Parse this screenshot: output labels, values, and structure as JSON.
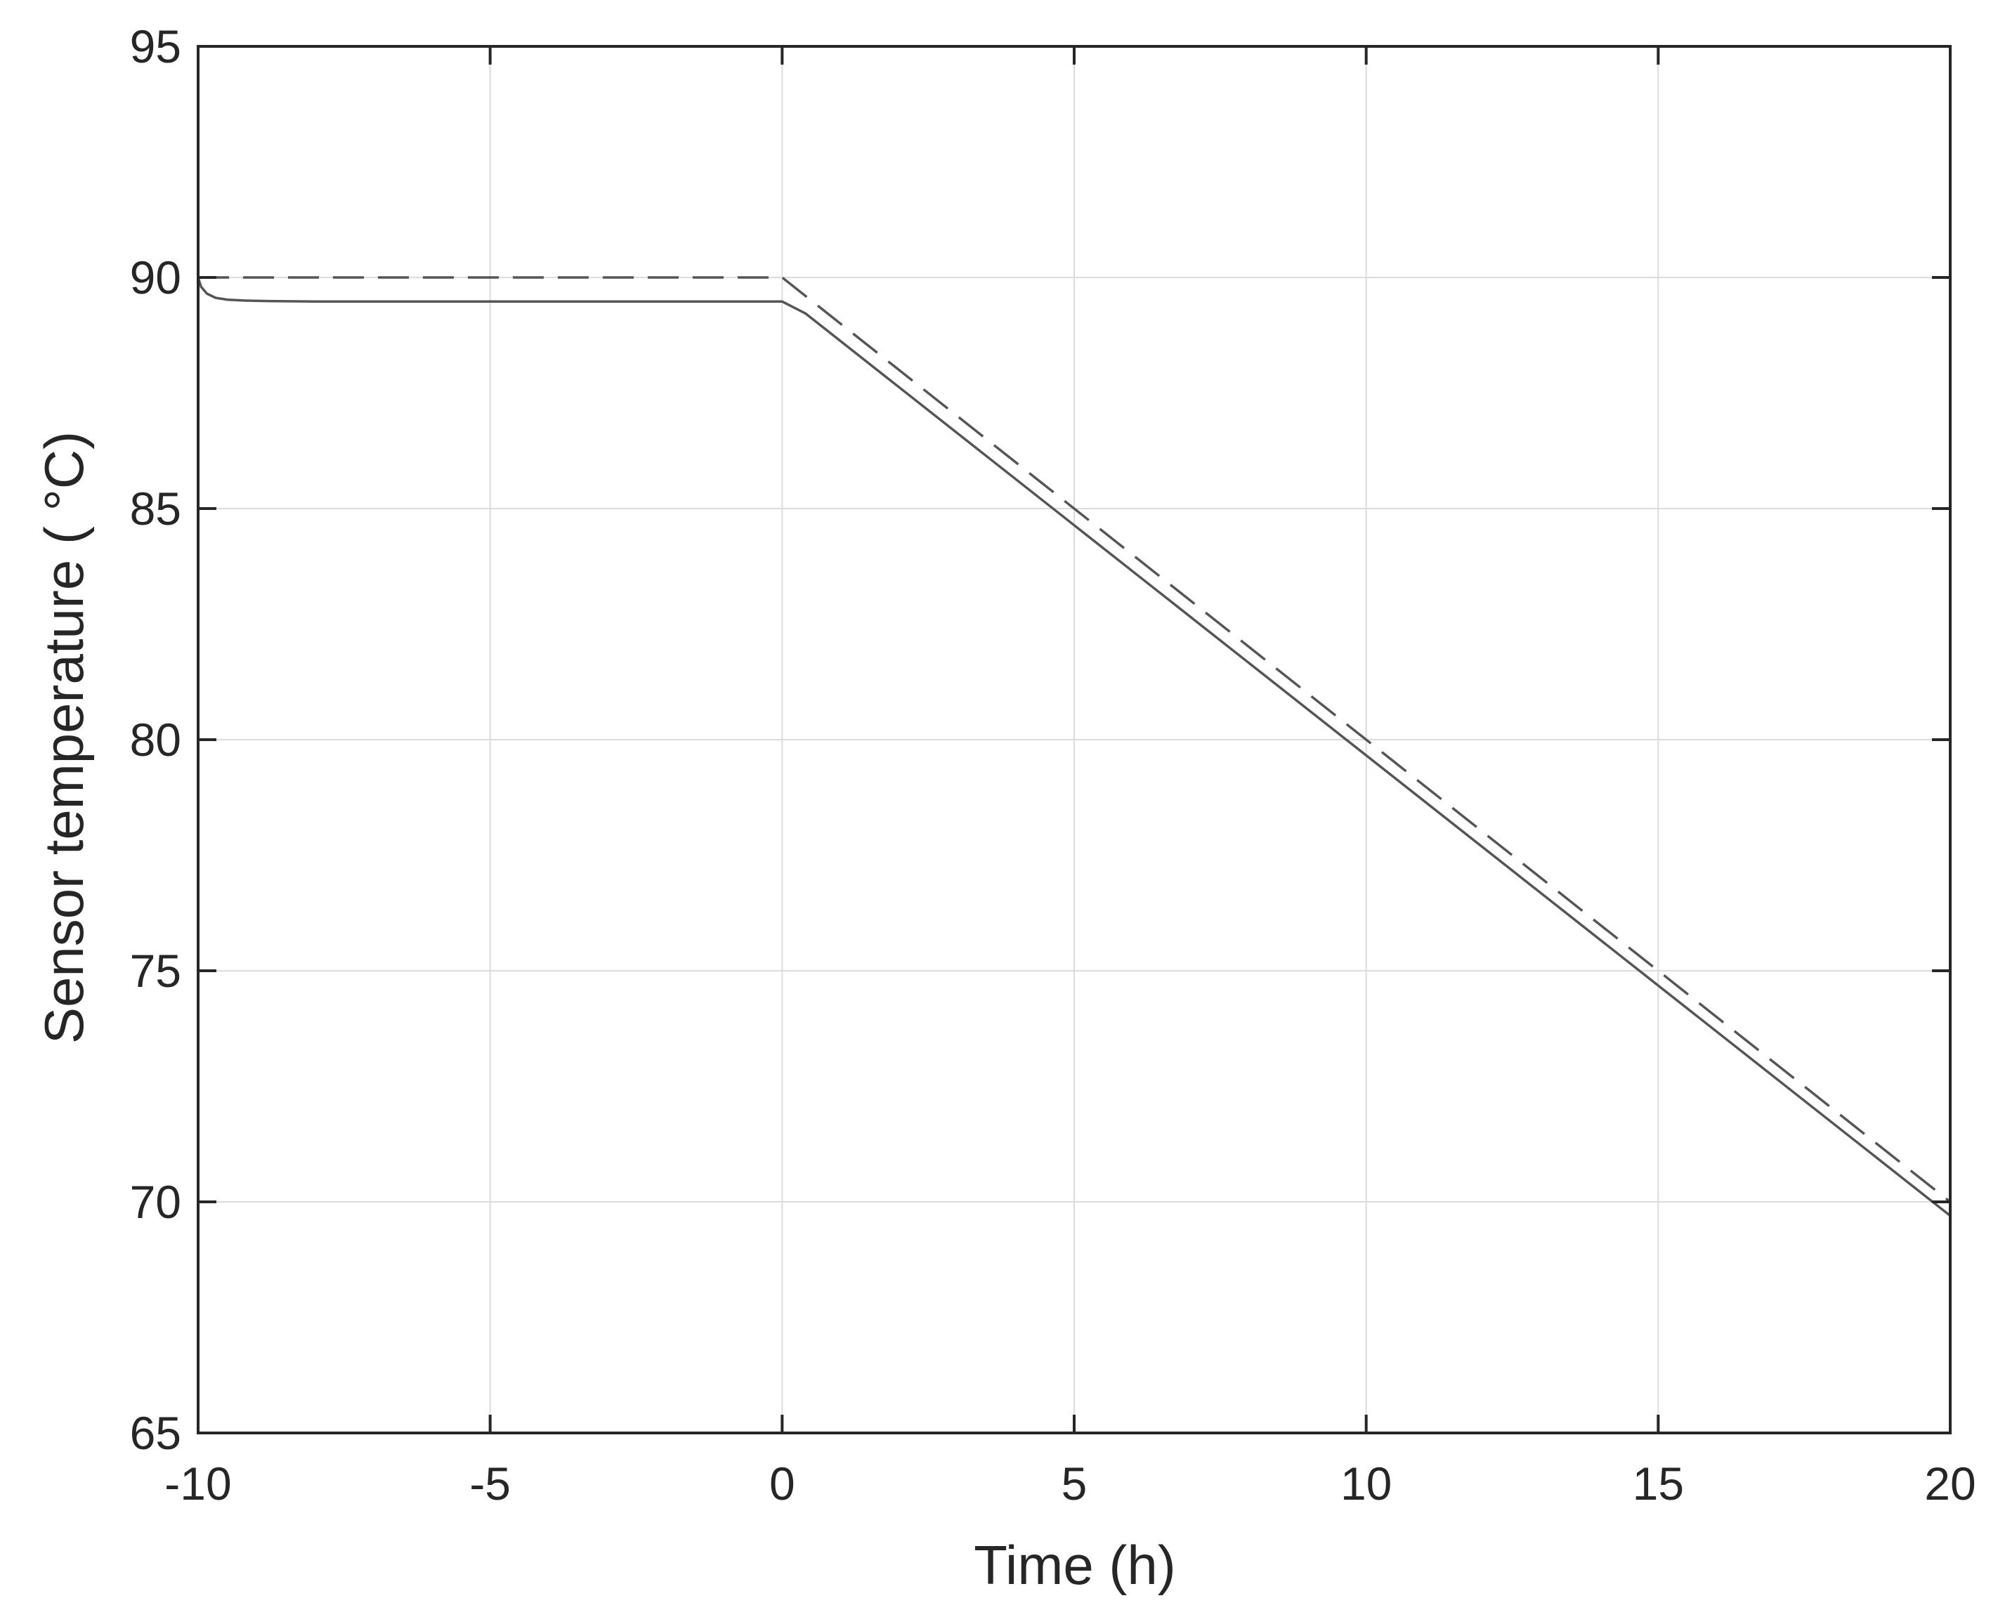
{
  "chart_data": {
    "type": "line",
    "title": "",
    "xlabel": "Time (h)",
    "ylabel": "Sensor temperature ( °C)",
    "xlim": [
      -10,
      20
    ],
    "ylim": [
      65,
      95
    ],
    "x_ticks": [
      -10,
      -5,
      0,
      5,
      10,
      15,
      20
    ],
    "y_ticks": [
      65,
      70,
      75,
      80,
      85,
      90,
      95
    ],
    "x_tick_labels": [
      "-10",
      "-5",
      "0",
      "5",
      "10",
      "15",
      "20"
    ],
    "y_tick_labels": [
      "65",
      "70",
      "75",
      "80",
      "85",
      "90",
      "95"
    ],
    "grid": true,
    "legend": "none",
    "series": [
      {
        "style": "dashed",
        "color": "#555555",
        "x": [
          -10,
          0,
          20
        ],
        "y": [
          90,
          90,
          70
        ]
      },
      {
        "style": "solid",
        "color": "#555555",
        "x": [
          -10,
          -9.95,
          -9.85,
          -9.7,
          -9.5,
          -9.2,
          -8.8,
          -8,
          0,
          0.4,
          20
        ],
        "y": [
          90,
          89.8,
          89.65,
          89.56,
          89.52,
          89.5,
          89.49,
          89.48,
          89.48,
          89.22,
          69.7
        ]
      }
    ]
  }
}
